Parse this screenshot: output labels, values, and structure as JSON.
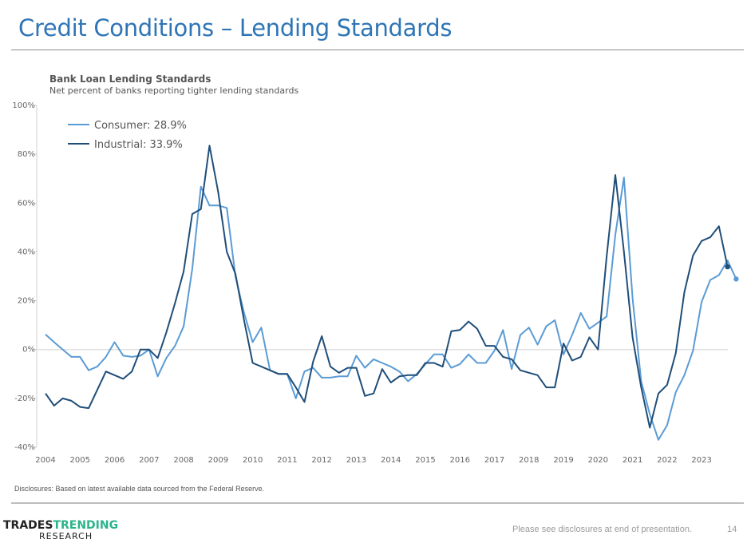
{
  "page": {
    "title": "Credit Conditions – Lending Standards",
    "disclosure": "Disclosures: Based on latest available data sourced from the Federal Reserve.",
    "footer_note": "Please see disclosures at end of presentation.",
    "page_number": "14"
  },
  "logo": {
    "word1": "TRADES",
    "word2": "TRENDING",
    "word3": "RESEARCH"
  },
  "chart_data": {
    "type": "line",
    "title": "Bank Loan Lending Standards",
    "subtitle": "Net percent of banks reporting tighter lending standards",
    "xlabel": "",
    "ylabel": "",
    "ylim": [
      -40,
      100
    ],
    "xlim": [
      2004,
      2024
    ],
    "y_ticks": [
      "100%",
      "80%",
      "60%",
      "40%",
      "20%",
      "0%",
      "-20%",
      "-40%"
    ],
    "y_tick_values": [
      100,
      80,
      60,
      40,
      20,
      0,
      -20,
      -40
    ],
    "x_ticks": [
      "2004",
      "2005",
      "2006",
      "2007",
      "2008",
      "2009",
      "2010",
      "2011",
      "2012",
      "2013",
      "2014",
      "2015",
      "2016",
      "2017",
      "2018",
      "2019",
      "2020",
      "2021",
      "2022",
      "2023"
    ],
    "grid": "zero-line only",
    "legend_position": "top-left",
    "frequency": "quarterly, starting 2004 Q1",
    "series": [
      {
        "name": "Consumer",
        "legend_label": "Consumer: 28.9%",
        "color": "#5b9bd5",
        "last_value": 28.9,
        "values": [
          6.2,
          3,
          0,
          -3,
          -3,
          -8.5,
          -7,
          -3,
          3,
          -2.5,
          -3,
          -2.5,
          0,
          -11,
          -3.5,
          1.5,
          9.5,
          33,
          66.7,
          59,
          59,
          58,
          30,
          15,
          3,
          9,
          -8.5,
          -10,
          -10,
          -20,
          -9,
          -7.5,
          -11.5,
          -11.5,
          -11,
          -11,
          -2.5,
          -7.5,
          -4,
          -5.5,
          -7,
          -9,
          -13,
          -10,
          -6,
          -2,
          -2,
          -7.5,
          -6,
          -2,
          -5.5,
          -5.5,
          -0.5,
          8,
          -8,
          6,
          9,
          2,
          9.5,
          12,
          -2,
          6,
          15,
          8.5,
          11,
          13.5,
          47,
          70.5,
          21,
          -13,
          -26.5,
          -37,
          -31,
          -17.5,
          -10.5,
          -0.5,
          19.5,
          28.5,
          30.5,
          36.5,
          28.9
        ]
      },
      {
        "name": "Industrial",
        "legend_label": "Industrial: 33.9%",
        "color": "#1f4e79",
        "last_value": 33.9,
        "values": [
          -18,
          -23,
          -20,
          -21,
          -23.5,
          -24,
          -16.5,
          -9,
          -10.5,
          -12,
          -9,
          0,
          0,
          -3.5,
          7,
          19,
          32,
          55.5,
          57.5,
          83.5,
          64.5,
          40,
          31,
          12,
          -5.5,
          -7,
          -8.5,
          -10,
          -10,
          -15.5,
          -21.5,
          -5,
          5.5,
          -7,
          -9.5,
          -7.5,
          -7.5,
          -19,
          -18,
          -8,
          -13.5,
          -11,
          -10.5,
          -10.5,
          -5.5,
          -5.5,
          -7,
          7.5,
          8,
          11.5,
          8.5,
          1.5,
          1.5,
          -3,
          -4,
          -8.5,
          -9.5,
          -10.5,
          -15.5,
          -15.5,
          2.5,
          -4.5,
          -3,
          5,
          0,
          38,
          71.5,
          40,
          5,
          -15.5,
          -32,
          -18,
          -14.5,
          -1.5,
          23.5,
          38.5,
          44.5,
          46,
          50.5,
          33.9
        ]
      }
    ]
  }
}
